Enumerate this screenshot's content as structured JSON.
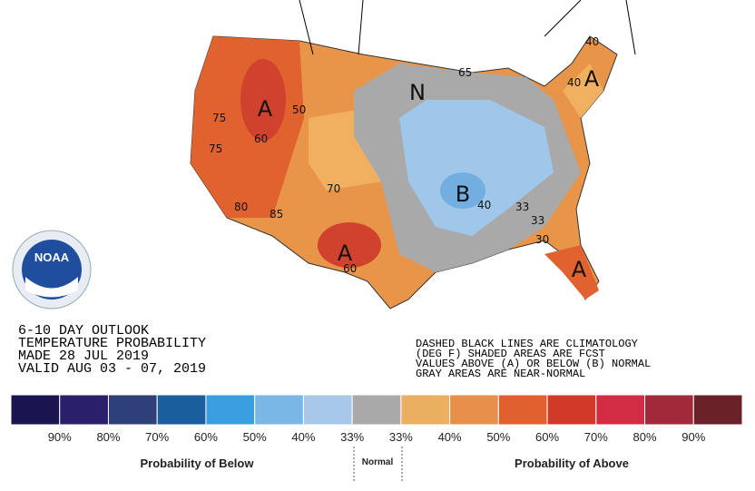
{
  "logo": {
    "text": "NOAA"
  },
  "title_block": {
    "lines": [
      "6-10 DAY OUTLOOK",
      "TEMPERATURE PROBABILITY",
      "MADE  28 JUL 2019",
      "VALID  AUG 03 - 07, 2019"
    ]
  },
  "note": {
    "lines": [
      "DASHED BLACK LINES ARE CLIMATOLOGY",
      "(DEG F) SHADED AREAS ARE FCST",
      "VALUES ABOVE (A) OR BELOW (B) NORMAL",
      "GRAY AREAS ARE NEAR-NORMAL"
    ]
  },
  "map": {
    "labels": [
      "A",
      "A",
      "A",
      "A",
      "N",
      "B",
      "50",
      "60",
      "75",
      "75",
      "70",
      "85",
      "65",
      "40",
      "40",
      "33",
      "33",
      "30",
      "60",
      "40",
      "80"
    ]
  },
  "legend": {
    "ticks": [
      "90%",
      "80%",
      "70%",
      "60%",
      "50%",
      "40%",
      "33%",
      "33%",
      "40%",
      "50%",
      "60%",
      "70%",
      "80%",
      "90%"
    ],
    "below": "Probability of Below",
    "normal": "Normal",
    "above": "Probability of Above"
  }
}
